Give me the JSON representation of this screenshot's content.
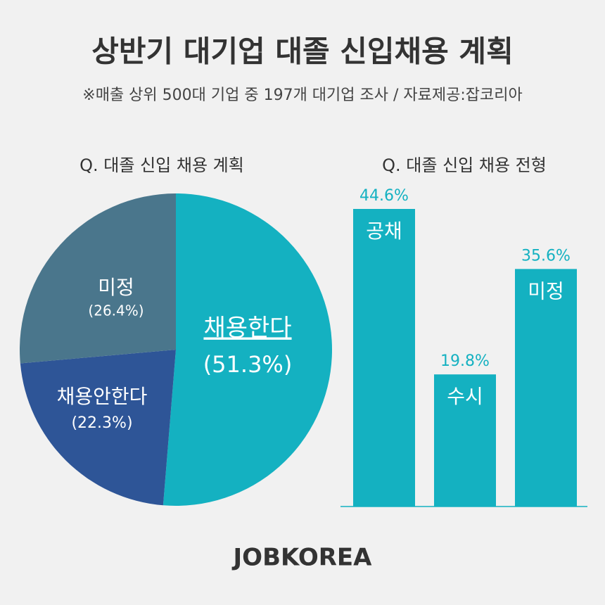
{
  "title": "상반기 대기업 대졸 신입채용 계획",
  "subtitle": "※매출 상위 500대 기업 중 197개 대기업 조사 / 자료제공:잡코리아",
  "footer": "JOBKOREA",
  "chart_data": [
    {
      "type": "pie",
      "title": "Q. 대졸 신입 채용 계획",
      "categories": [
        "채용한다",
        "채용안한다",
        "미정"
      ],
      "values": [
        51.3,
        22.3,
        26.4
      ],
      "value_labels": [
        "(51.3%)",
        "(22.3%)",
        "(26.4%)"
      ],
      "colors": [
        "#14b1c1",
        "#2e5597",
        "#4a768c"
      ]
    },
    {
      "type": "bar",
      "title": "Q. 대졸 신입 채용 전형",
      "categories": [
        "공채",
        "수시",
        "미정"
      ],
      "values": [
        44.6,
        19.8,
        35.6
      ],
      "value_labels": [
        "44.6%",
        "19.8%",
        "35.6%"
      ],
      "color": "#14b1c1"
    }
  ]
}
